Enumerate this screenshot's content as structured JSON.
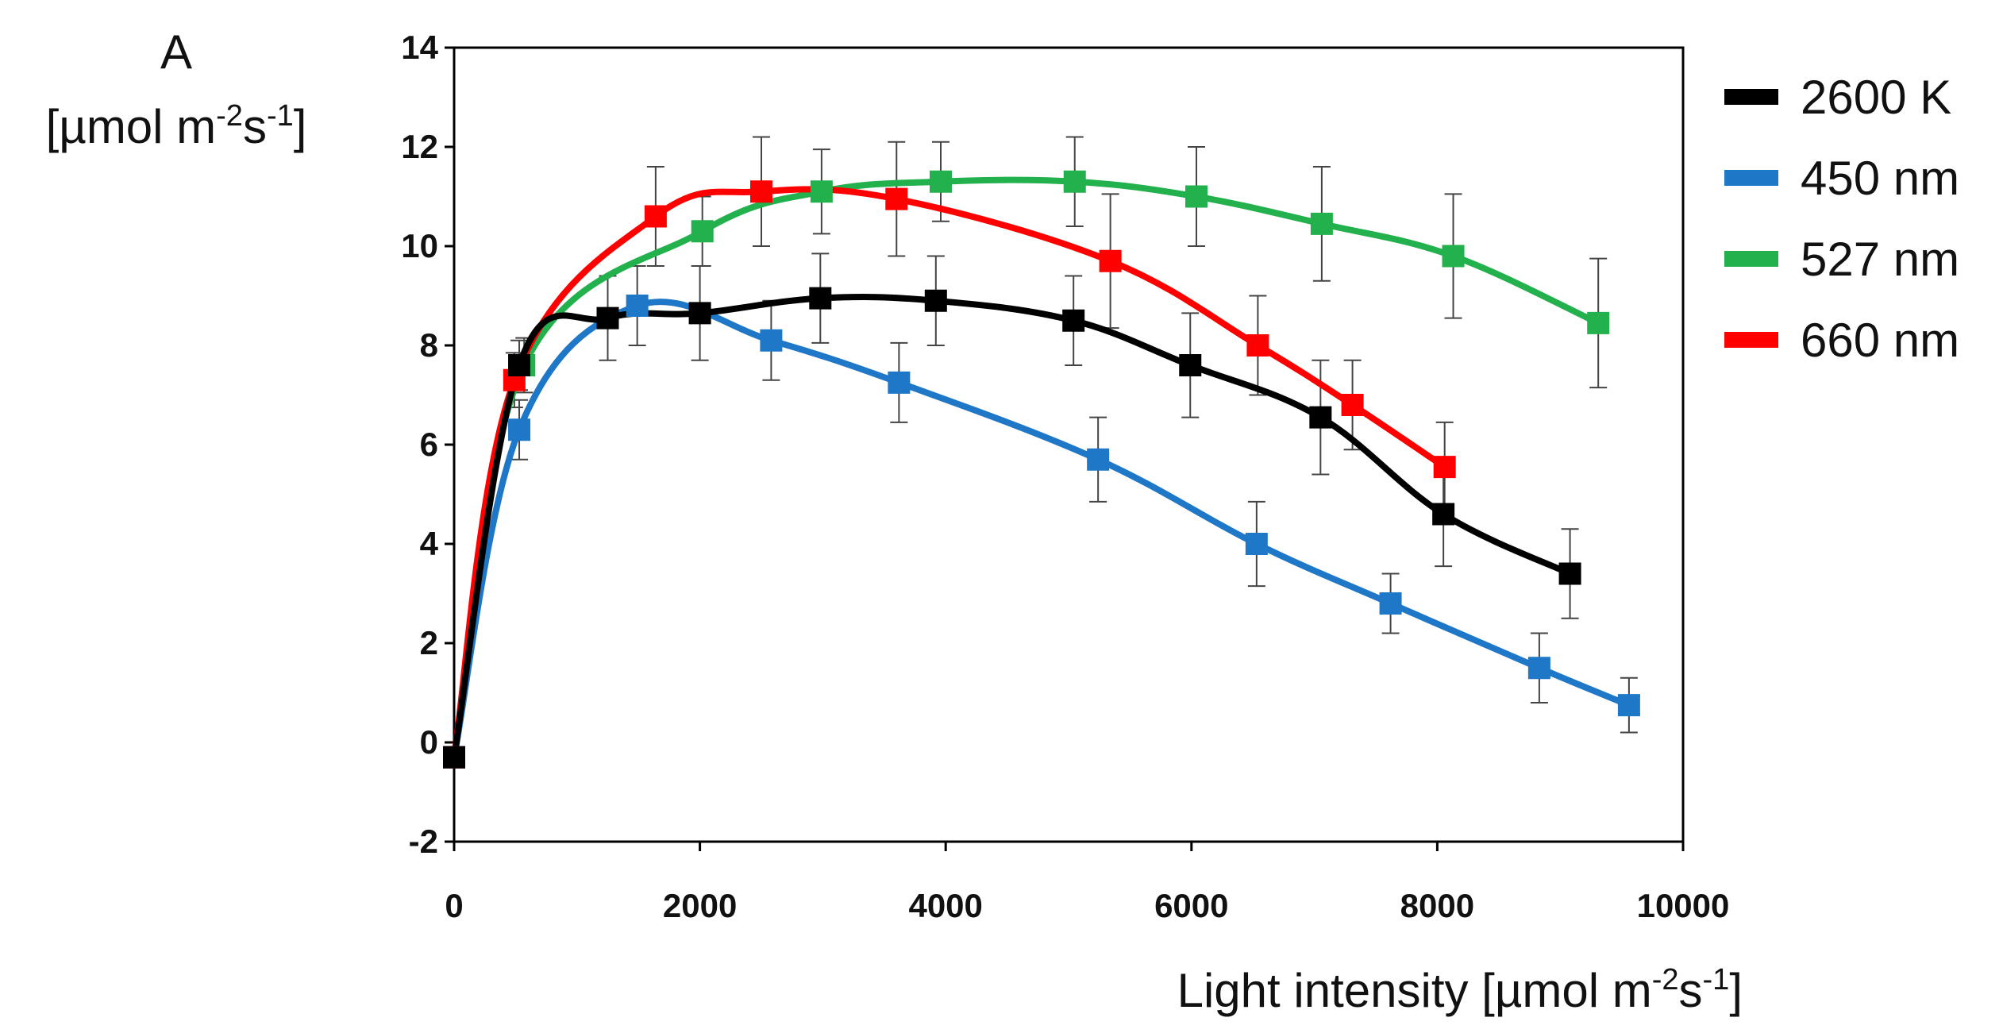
{
  "chart_data": {
    "type": "line",
    "xlabel": "Light intensity [µmol m-2s-1]",
    "xlabel_parts": {
      "main": "Light intensity [µmol m",
      "exp1": "-2",
      "mid": "s",
      "exp2": "-1",
      "end": "]"
    },
    "ylabel_line1": "A",
    "ylabel_parts": {
      "main": "[µmol m",
      "exp1": "-2",
      "mid": "s",
      "exp2": "-1",
      "end": "]"
    },
    "xlim": [
      0,
      10000
    ],
    "ylim": [
      -2,
      14
    ],
    "xticks": [
      0,
      2000,
      4000,
      6000,
      8000,
      10000
    ],
    "yticks": [
      -2,
      0,
      2,
      4,
      6,
      8,
      10,
      12,
      14
    ],
    "legend_position": "right",
    "series": [
      {
        "name": "2600 K",
        "color": "#000000",
        "points": [
          {
            "x": 0,
            "y": -0.3,
            "err": 0
          },
          {
            "x": 530,
            "y": 7.6,
            "err": 0.5
          },
          {
            "x": 1250,
            "y": 8.55,
            "err": 0.85
          },
          {
            "x": 2000,
            "y": 8.65,
            "err": 0.95
          },
          {
            "x": 2980,
            "y": 8.95,
            "err": 0.9
          },
          {
            "x": 3920,
            "y": 8.9,
            "err": 0.9
          },
          {
            "x": 5040,
            "y": 8.5,
            "err": 0.9
          },
          {
            "x": 5990,
            "y": 7.6,
            "err": 1.05
          },
          {
            "x": 7050,
            "y": 6.55,
            "err": 1.15
          },
          {
            "x": 8050,
            "y": 4.6,
            "err": 1.05
          },
          {
            "x": 9080,
            "y": 3.4,
            "err": 0.9
          }
        ]
      },
      {
        "name": "450 nm",
        "color": "#1f77c8",
        "points": [
          {
            "x": 0,
            "y": -0.3,
            "err": 0
          },
          {
            "x": 530,
            "y": 6.3,
            "err": 0.6
          },
          {
            "x": 1490,
            "y": 8.8,
            "err": 0.8
          },
          {
            "x": 2580,
            "y": 8.1,
            "err": 0.8
          },
          {
            "x": 3620,
            "y": 7.25,
            "err": 0.8
          },
          {
            "x": 5240,
            "y": 5.7,
            "err": 0.85
          },
          {
            "x": 6530,
            "y": 4.0,
            "err": 0.85
          },
          {
            "x": 7620,
            "y": 2.8,
            "err": 0.6
          },
          {
            "x": 8830,
            "y": 1.5,
            "err": 0.7
          },
          {
            "x": 9560,
            "y": 0.75,
            "err": 0.55
          }
        ]
      },
      {
        "name": "527 nm",
        "color": "#22b14c",
        "points": [
          {
            "x": 0,
            "y": -0.3,
            "err": 0
          },
          {
            "x": 570,
            "y": 7.6,
            "err": 0.55
          },
          {
            "x": 2020,
            "y": 10.3,
            "err": 0.7
          },
          {
            "x": 2990,
            "y": 11.1,
            "err": 0.85
          },
          {
            "x": 3960,
            "y": 11.3,
            "err": 0.8
          },
          {
            "x": 5050,
            "y": 11.3,
            "err": 0.9
          },
          {
            "x": 6040,
            "y": 11.0,
            "err": 1.0
          },
          {
            "x": 7060,
            "y": 10.45,
            "err": 1.15
          },
          {
            "x": 8130,
            "y": 9.8,
            "err": 1.25
          },
          {
            "x": 9310,
            "y": 8.45,
            "err": 1.3
          }
        ]
      },
      {
        "name": "660 nm",
        "color": "#ff0000",
        "points": [
          {
            "x": 0,
            "y": -0.3,
            "err": 0
          },
          {
            "x": 490,
            "y": 7.3,
            "err": 0.55
          },
          {
            "x": 1640,
            "y": 10.6,
            "err": 1.0
          },
          {
            "x": 2500,
            "y": 11.1,
            "err": 1.1
          },
          {
            "x": 3600,
            "y": 10.95,
            "err": 1.15
          },
          {
            "x": 5340,
            "y": 9.7,
            "err": 1.35
          },
          {
            "x": 6540,
            "y": 8.0,
            "err": 1.0
          },
          {
            "x": 7310,
            "y": 6.8,
            "err": 0.9
          },
          {
            "x": 8060,
            "y": 5.55,
            "err": 0.9
          }
        ]
      }
    ]
  }
}
